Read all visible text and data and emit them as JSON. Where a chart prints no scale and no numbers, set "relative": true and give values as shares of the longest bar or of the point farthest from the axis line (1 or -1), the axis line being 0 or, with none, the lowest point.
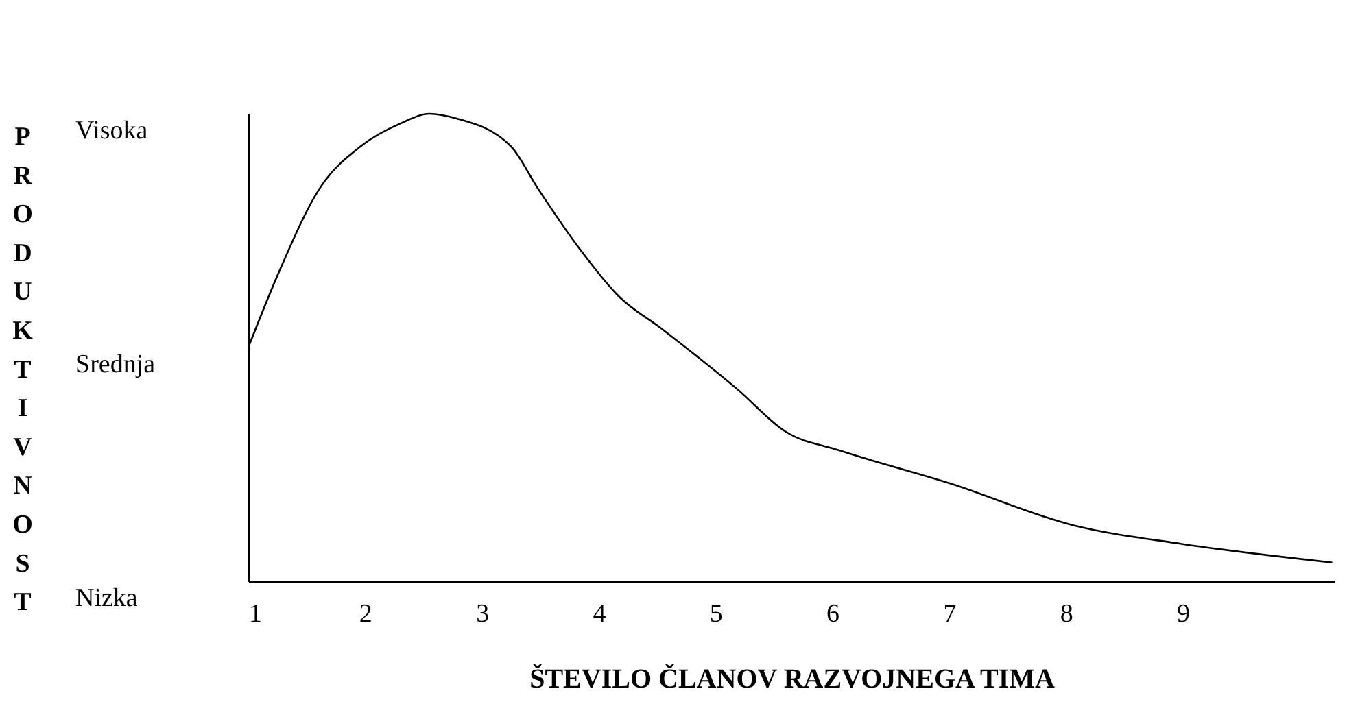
{
  "chart_data": {
    "type": "line",
    "xlabel": "ŠTEVILO ČLANOV RAZVOJNEGA TIMA",
    "ylabel": "PRODUKTIVNOST",
    "relative": true,
    "annotations": [
      "Visoka",
      "Srednja",
      "Nizka"
    ],
    "x": [
      1,
      1.26,
      1.61,
      1.96,
      2.31,
      2.55,
      2.78,
      3.25,
      3.48,
      3.84,
      4.17,
      4.54,
      5.19,
      5.6,
      6.06,
      7,
      8.06,
      8.99,
      10.28
    ],
    "series": [
      {
        "color": "#000000",
        "values": [
          0.5,
          0.66,
          0.84,
          0.93,
          0.98,
          1,
          0.99,
          0.93,
          0.84,
          0.71,
          0.61,
          0.54,
          0.41,
          0.32,
          0.28,
          0.21,
          0.12,
          0.08,
          0.04
        ]
      }
    ],
    "xlim": [
      1,
      10.3
    ],
    "xticks": [
      1,
      2,
      3,
      4,
      5,
      6,
      7,
      8,
      9
    ],
    "grid": false,
    "marker": "none",
    "line_style": "solid"
  }
}
